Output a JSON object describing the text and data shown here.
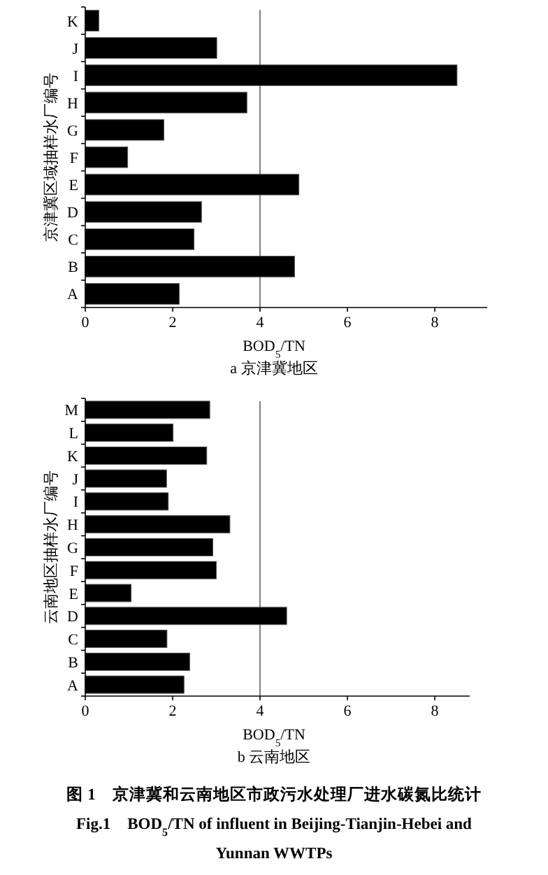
{
  "chart_data": [
    {
      "type": "bar",
      "orientation": "horizontal",
      "title": "a 京津冀地区",
      "xlabel": "BOD$_{5}$/TN",
      "ylabel": "京津冀区域抽样水厂编号",
      "categories": [
        "K",
        "J",
        "I",
        "H",
        "G",
        "F",
        "E",
        "D",
        "C",
        "B",
        "A"
      ],
      "values": [
        0.31,
        3.01,
        8.51,
        3.7,
        1.8,
        0.97,
        4.89,
        2.66,
        2.49,
        4.79,
        2.15
      ],
      "color": "#000000",
      "xlim": [
        0,
        9.2
      ],
      "xticks": [
        0,
        2,
        4,
        6,
        8
      ],
      "grid": false,
      "ref_lines": [
        {
          "axis": "x",
          "value": 4,
          "color": "#808080"
        }
      ]
    },
    {
      "type": "bar",
      "orientation": "horizontal",
      "title": "b 云南地区",
      "xlabel": "BOD$_{5}$/TN",
      "ylabel": "云南地区抽样水厂编号",
      "categories": [
        "M",
        "L",
        "K",
        "J",
        "I",
        "H",
        "G",
        "F",
        "E",
        "D",
        "C",
        "B",
        "A"
      ],
      "values": [
        2.85,
        2.01,
        2.78,
        1.86,
        1.9,
        3.31,
        2.92,
        3.0,
        1.05,
        4.61,
        1.87,
        2.39,
        2.26
      ],
      "color": "#000000",
      "xlim": [
        0,
        8.8
      ],
      "xticks": [
        0,
        2,
        4,
        6,
        8
      ],
      "grid": false,
      "ref_lines": [
        {
          "axis": "x",
          "value": 4,
          "color": "#808080"
        }
      ],
      "annotations": [
        "图 1　京津冀和云南地区市政污水处理厂进水碳氮比统计",
        "Fig.1　BOD$_{5}$/TN of influent in Beijing-Tianjin-Hebei and",
        "Yunnan WWTPs"
      ]
    }
  ]
}
